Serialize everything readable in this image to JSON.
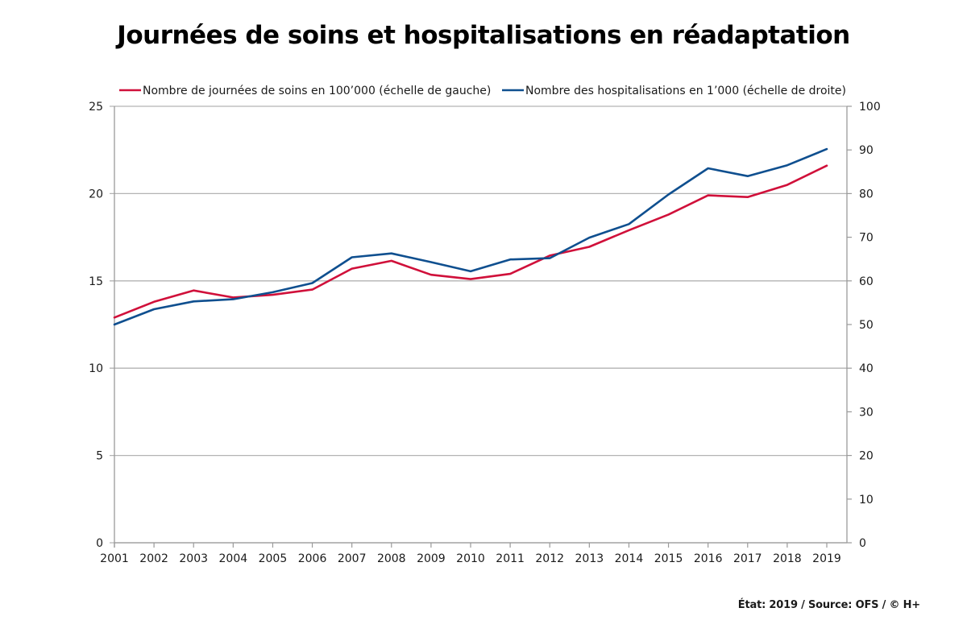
{
  "chart_data": {
    "type": "line",
    "title": "Journées de soins et hospitalisations en réadaptation",
    "xlabel": "",
    "ylabel_left": "",
    "ylabel_right": "",
    "x": [
      "2001",
      "2002",
      "2003",
      "2004",
      "2005",
      "2006",
      "2007",
      "2008",
      "2009",
      "2010",
      "2011",
      "2012",
      "2013",
      "2014",
      "2015",
      "2016",
      "2017",
      "2018",
      "2019"
    ],
    "y_left": {
      "range": [
        0,
        25
      ],
      "ticks": [
        "0",
        "5",
        "10",
        "15",
        "20",
        "25"
      ],
      "tick_values": [
        0,
        5,
        10,
        15,
        20,
        25
      ]
    },
    "y_right": {
      "range": [
        0,
        100
      ],
      "ticks": [
        "0",
        "10",
        "20",
        "30",
        "40",
        "50",
        "60",
        "70",
        "80",
        "90",
        "100"
      ],
      "tick_values": [
        0,
        10,
        20,
        30,
        40,
        50,
        60,
        70,
        80,
        90,
        100
      ]
    },
    "grid": "horizontal (left-axis major ticks)",
    "legend_position": "top",
    "series": [
      {
        "name": "Nombre de journées de soins en 100’000 (échelle de gauche)",
        "axis": "left",
        "color": "#d0103a",
        "values": [
          12.9,
          13.8,
          14.45,
          14.05,
          14.2,
          14.5,
          15.7,
          16.15,
          15.35,
          15.1,
          15.4,
          16.45,
          16.95,
          17.9,
          18.8,
          19.9,
          19.8,
          20.5,
          21.6
        ]
      },
      {
        "name": "Nombre des hospitalisations en 1’000 (échelle de droite)",
        "axis": "right",
        "color": "#0f4f8f",
        "values": [
          50.0,
          53.5,
          55.3,
          55.8,
          57.4,
          59.5,
          65.4,
          66.3,
          64.3,
          62.2,
          64.9,
          65.2,
          69.9,
          73.0,
          79.8,
          85.8,
          84.0,
          86.5,
          90.2
        ]
      }
    ]
  },
  "footer": {
    "source": "État: 2019 / Source: OFS / © H+"
  }
}
